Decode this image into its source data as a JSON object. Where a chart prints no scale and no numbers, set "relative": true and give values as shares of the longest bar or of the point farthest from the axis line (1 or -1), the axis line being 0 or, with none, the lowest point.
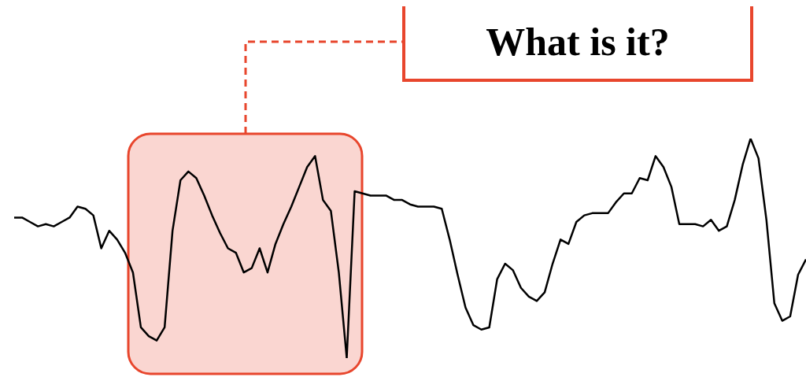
{
  "chart_data": {
    "type": "line",
    "relative": true,
    "categories": [
      null,
      null,
      null,
      null,
      null,
      null,
      null,
      null,
      null,
      null,
      null,
      null,
      null,
      null,
      null,
      null,
      null,
      null,
      null,
      null,
      null,
      null,
      null,
      null,
      null,
      null,
      null,
      null,
      null,
      null,
      null,
      null,
      null,
      null,
      null,
      null,
      null,
      null,
      null,
      null,
      null,
      null,
      null,
      null,
      null,
      null,
      null,
      null,
      null,
      null,
      null,
      null,
      null,
      null,
      null,
      null,
      null,
      null,
      null,
      null,
      null,
      null,
      null,
      null,
      null,
      null,
      null,
      null,
      null,
      null,
      null,
      null,
      null,
      null,
      null,
      null,
      null,
      null,
      null,
      null,
      null,
      null,
      null,
      null,
      null,
      null,
      null,
      null,
      null,
      null,
      null,
      null,
      null,
      null,
      null,
      null,
      null,
      null,
      null,
      null,
      null
    ],
    "values": [
      0.64,
      0.64,
      0.62,
      0.6,
      0.61,
      0.6,
      0.62,
      0.64,
      0.69,
      0.68,
      0.65,
      0.5,
      0.58,
      0.54,
      0.48,
      0.39,
      0.14,
      0.1,
      0.08,
      0.14,
      0.58,
      0.81,
      0.85,
      0.82,
      0.74,
      0.65,
      0.57,
      0.5,
      0.48,
      0.39,
      0.41,
      0.5,
      0.39,
      0.52,
      0.61,
      0.69,
      0.78,
      0.87,
      0.92,
      0.72,
      0.67,
      0.39,
      0,
      0.76,
      0.75,
      0.74,
      0.74,
      0.74,
      0.72,
      0.72,
      0.7,
      0.69,
      0.69,
      0.69,
      0.68,
      0.54,
      0.38,
      0.23,
      0.15,
      0.13,
      0.14,
      0.36,
      0.43,
      0.4,
      0.32,
      0.28,
      0.26,
      0.3,
      0.43,
      0.54,
      0.52,
      0.62,
      0.65,
      0.66,
      0.66,
      0.66,
      0.71,
      0.75,
      0.75,
      0.82,
      0.81,
      0.92,
      0.87,
      0.78,
      0.61,
      0.61,
      0.61,
      0.6,
      0.63,
      0.58,
      0.6,
      0.72,
      0.88,
      1,
      0.91,
      0.63,
      0.25,
      0.17,
      0.19,
      0.38,
      0.45
    ],
    "color": "#000000",
    "annotations": [
      "What is it?"
    ]
  }
}
